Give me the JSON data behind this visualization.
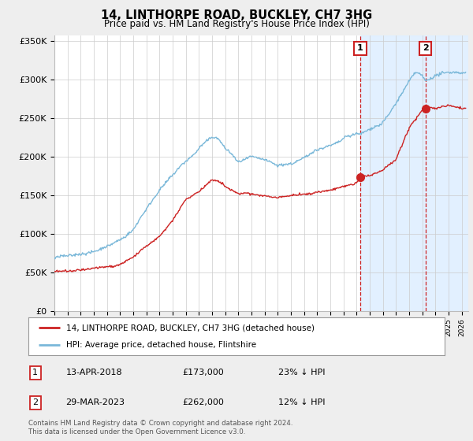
{
  "title": "14, LINTHORPE ROAD, BUCKLEY, CH7 3HG",
  "subtitle": "Price paid vs. HM Land Registry's House Price Index (HPI)",
  "ylabel_ticks": [
    "£0",
    "£50K",
    "£100K",
    "£150K",
    "£200K",
    "£250K",
    "£300K",
    "£350K"
  ],
  "ylim": [
    0,
    357000
  ],
  "xlim_start": 1995.0,
  "xlim_end": 2026.5,
  "sale1_date": 2018.28,
  "sale1_price": 173000,
  "sale2_date": 2023.24,
  "sale2_price": 262000,
  "hpi_color": "#7ab8d9",
  "price_color": "#cc2222",
  "vline_color": "#cc2222",
  "shade_color": "#ddeeff",
  "legend_label_price": "14, LINTHORPE ROAD, BUCKLEY, CH7 3HG (detached house)",
  "legend_label_hpi": "HPI: Average price, detached house, Flintshire",
  "table_row1": [
    "1",
    "13-APR-2018",
    "£173,000",
    "23% ↓ HPI"
  ],
  "table_row2": [
    "2",
    "29-MAR-2023",
    "£262,000",
    "12% ↓ HPI"
  ],
  "footnote": "Contains HM Land Registry data © Crown copyright and database right 2024.\nThis data is licensed under the Open Government Licence v3.0.",
  "background_color": "#eeeeee",
  "plot_bg_color": "#ffffff"
}
